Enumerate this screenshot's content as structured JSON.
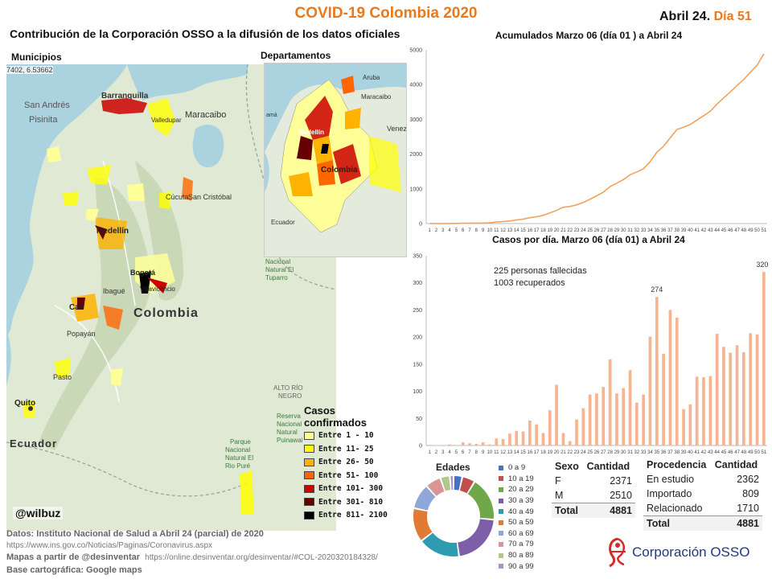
{
  "header": {
    "title": "COVID-19 Colombia 2020",
    "date_prefix": "Abril 24.",
    "day": "Día 51",
    "subtitle": "Contribución de la Corporación OSSO a la difusión de los datos oficiales"
  },
  "maps": {
    "municipios_label": "Municipios",
    "departamentos_label": "Departamentos",
    "coord_readout": "7402, 6.53662",
    "main_places": [
      "San Andrés",
      "Pisinita",
      "Barranquilla",
      "Valledupar",
      "Maracaibo",
      "Cúcuta",
      "San Cristóbal",
      "Medellín",
      "Bogotá",
      "Villavicencio",
      "Ibagué",
      "Colombia",
      "Cali",
      "Popayán",
      "Pasto",
      "Quito",
      "Ecuador",
      "Parque Nacional Natural El Tuparro",
      "Alto Río Negro",
      "Parque Nacional Natural El Rio Puré",
      "Reserva Nacional Natural Puinawai"
    ],
    "dept_places": [
      "Aruba",
      "Maracaibo",
      "Venez",
      "Medellín",
      "Colombia",
      "Ecuador",
      "Panamá"
    ],
    "legend_title": "Casos confirmados",
    "legend": [
      {
        "label": "Entre 1 - 10",
        "color": "#ffff99"
      },
      {
        "label": "Entre 11- 25",
        "color": "#ffff00"
      },
      {
        "label": "Entre 26- 50",
        "color": "#ffb300"
      },
      {
        "label": "Entre 51- 100",
        "color": "#ff6600"
      },
      {
        "label": "Entre 101- 300",
        "color": "#cc0000"
      },
      {
        "label": "Entre 301- 810",
        "color": "#660000"
      },
      {
        "label": "Entre 811- 2100",
        "color": "#000000"
      }
    ],
    "credit": "@wilbuz"
  },
  "footer": {
    "line1": "Datos: Instituto Nacional de Salud a Abril 24 (parcial) de 2020",
    "line2": "https://www.ins.gov.co/Noticias/Paginas/Coronavirus.aspx",
    "line3_label": "Mapas a partir de @desinventar",
    "line3_url": "https://online.desinventar.org/desinventar/#COL-2020320184328/",
    "line4": "Base cartográfica: Google maps"
  },
  "chart_data": [
    {
      "type": "line",
      "title": "Acumulados  Marzo 06 (día 01 ) a Abril 24",
      "x": [
        1,
        2,
        3,
        4,
        5,
        6,
        7,
        8,
        9,
        10,
        11,
        12,
        13,
        14,
        15,
        16,
        17,
        18,
        19,
        20,
        21,
        22,
        23,
        24,
        25,
        26,
        27,
        28,
        29,
        30,
        31,
        32,
        33,
        34,
        35,
        36,
        37,
        38,
        39,
        40,
        41,
        42,
        43,
        44,
        45,
        46,
        47,
        48,
        49,
        50,
        51
      ],
      "series": [
        {
          "color": "#f2a15a",
          "values": [
            1,
            1,
            1,
            3,
            3,
            9,
            9,
            13,
            16,
            24,
            45,
            57,
            75,
            102,
            128,
            170,
            196,
            235,
            306,
            378,
            470,
            491,
            539,
            608,
            702,
            798,
            906,
            1065,
            1161,
            1267,
            1406,
            1485,
            1579,
            1780,
            2054,
            2223,
            2473,
            2709,
            2776,
            2852,
            2979,
            3105,
            3233,
            3439,
            3621,
            3792,
            3977,
            4149,
            4356,
            4561,
            4881
          ]
        }
      ],
      "ylim": [
        0,
        5000
      ],
      "yticks": [
        0,
        1000,
        2000,
        3000,
        4000,
        5000
      ],
      "xlabel": "",
      "ylabel": ""
    },
    {
      "type": "bar",
      "title": "Casos por día. Marzo 06 (día 01) a Abril 24",
      "categories": [
        "1",
        "2",
        "3",
        "4",
        "5",
        "6",
        "7",
        "8",
        "9",
        "10",
        "11",
        "12",
        "13",
        "14",
        "15",
        "16",
        "17",
        "18",
        "19",
        "20",
        "21",
        "22",
        "23",
        "24",
        "25",
        "26",
        "27",
        "28",
        "29",
        "30",
        "31",
        "32",
        "33",
        "34",
        "35",
        "36",
        "37",
        "38",
        "39",
        "40",
        "41",
        "42",
        "43",
        "44",
        "45",
        "46",
        "47",
        "48",
        "49",
        "50",
        "51"
      ],
      "series": [
        {
          "color": "#f5b592",
          "values": [
            1,
            0,
            0,
            2,
            0,
            6,
            4,
            3,
            6,
            2,
            13,
            12,
            22,
            27,
            26,
            46,
            39,
            23,
            65,
            112,
            23,
            8,
            48,
            69,
            94,
            96,
            108,
            159,
            96,
            106,
            139,
            79,
            94,
            201,
            274,
            169,
            250,
            236,
            67,
            76,
            127,
            126,
            128,
            206,
            182,
            171,
            185,
            172,
            207,
            205,
            320
          ]
        }
      ],
      "annotations": [
        "274",
        "320"
      ],
      "note1": "225 personas fallecidas",
      "note2": "1003 recuperados",
      "ylim": [
        0,
        350
      ],
      "yticks": [
        0,
        50,
        100,
        150,
        200,
        250,
        300,
        350
      ],
      "xlabel": "",
      "ylabel": ""
    },
    {
      "type": "pie",
      "title": "Edades",
      "categories": [
        "0 a 9",
        "10 a 19",
        "20 a 29",
        "30 a 39",
        "40 a 49",
        "50 a 59",
        "60 a 69",
        "70 a 79",
        "80 a 89",
        "90 a 99"
      ],
      "values": [
        3.5,
        5.2,
        17.6,
        21.5,
        16.8,
        13.6,
        10.2,
        6.3,
        3.8,
        1.5
      ],
      "colors": [
        "#4472c4",
        "#c0504d",
        "#70a74a",
        "#7c5fa8",
        "#2e9bb0",
        "#e07a35",
        "#8fa8d8",
        "#d99694",
        "#b2c78a",
        "#a594c4"
      ]
    },
    {
      "type": "table",
      "title": "Sexo",
      "columns": [
        "Sexo",
        "Cantidad"
      ],
      "rows": [
        [
          "F",
          "2371"
        ],
        [
          "M",
          "2510"
        ]
      ],
      "total": [
        "Total",
        "4881"
      ]
    },
    {
      "type": "table",
      "title": "Procedencia",
      "columns": [
        "Procedencia",
        "Cantidad"
      ],
      "rows": [
        [
          "En estudio",
          "2362"
        ],
        [
          "Importado",
          "809"
        ],
        [
          "Relacionado",
          "1710"
        ]
      ],
      "total": [
        "Total",
        "4881"
      ]
    }
  ],
  "brand": {
    "name": "Corporación OSSO",
    "color": "#1f3a80",
    "accent": "#e8791c"
  }
}
